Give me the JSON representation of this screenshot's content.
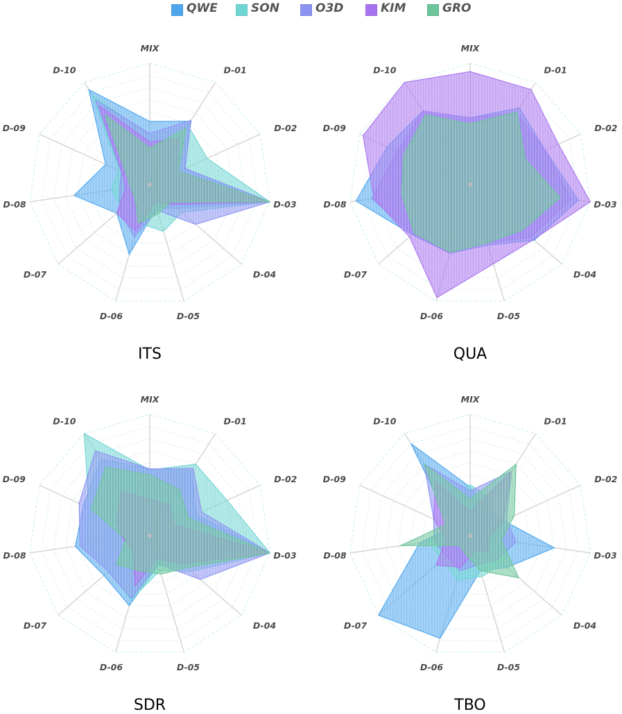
{
  "colors": {
    "QWE": "#4ea6ee",
    "SON": "#6fd5d2",
    "O3D": "#8b93f1",
    "KIM": "#a873ee",
    "GRO": "#6cc49a"
  },
  "legend": [
    "QWE",
    "SON",
    "O3D",
    "KIM",
    "GRO"
  ],
  "chart_data": [
    {
      "type": "radar",
      "title": "ITS",
      "axes": [
        "MIX",
        "D-01",
        "D-02",
        "D-03",
        "D-04",
        "D-05",
        "D-06",
        "D-07",
        "D-08",
        "D-09",
        "D-10"
      ],
      "range": [
        0,
        10
      ],
      "grid": true,
      "series": [
        {
          "name": "QWE",
          "values": [
            5.2,
            6.2,
            3.2,
            10,
            3.0,
            2.0,
            6.0,
            3.6,
            6.3,
            4.0,
            9.3
          ]
        },
        {
          "name": "SON",
          "values": [
            4.0,
            5.8,
            5.2,
            10,
            3.5,
            4.0,
            3.3,
            3.0,
            3.2,
            2.8,
            8.8
          ]
        },
        {
          "name": "O3D",
          "values": [
            4.2,
            6.3,
            3.2,
            10,
            5.0,
            2.2,
            4.5,
            3.3,
            2.5,
            2.6,
            8.3
          ]
        },
        {
          "name": "KIM",
          "values": [
            3.5,
            4.5,
            2.5,
            10,
            2.5,
            1.5,
            4.0,
            3.6,
            2.0,
            2.5,
            7.7
          ]
        },
        {
          "name": "GRO",
          "values": [
            3.0,
            5.5,
            2.6,
            10,
            2.2,
            2.5,
            3.3,
            1.6,
            1.6,
            2.1,
            6.8
          ]
        }
      ]
    },
    {
      "type": "radar",
      "title": "QUA",
      "axes": [
        "MIX",
        "D-01",
        "D-02",
        "D-03",
        "D-04",
        "D-05",
        "D-06",
        "D-07",
        "D-08",
        "D-09",
        "D-10"
      ],
      "range": [
        0,
        10
      ],
      "grid": true,
      "series": [
        {
          "name": "QWE",
          "values": [
            5.5,
            7.5,
            6.8,
            9.0,
            7.0,
            5.2,
            5.9,
            6.3,
            9.5,
            7.5,
            7.2
          ]
        },
        {
          "name": "SON",
          "values": [
            5.0,
            7.0,
            6.2,
            8.4,
            5.8,
            5.0,
            5.8,
            6.0,
            6.6,
            6.4,
            6.8
          ]
        },
        {
          "name": "O3D",
          "values": [
            5.5,
            7.0,
            6.8,
            8.4,
            6.6,
            5.0,
            5.9,
            6.2,
            8.2,
            6.6,
            7.2
          ]
        },
        {
          "name": "KIM",
          "values": [
            9.3,
            9.3,
            8.0,
            10,
            6.9,
            6.8,
            9.7,
            6.6,
            8.0,
            9.7,
            10
          ]
        },
        {
          "name": "GRO",
          "values": [
            5.0,
            7.1,
            5.0,
            7.5,
            5.7,
            5.0,
            5.8,
            6.1,
            5.7,
            6.0,
            6.8
          ]
        }
      ]
    },
    {
      "type": "radar",
      "title": "SDR",
      "axes": [
        "MIX",
        "D-01",
        "D-02",
        "D-03",
        "D-04",
        "D-05",
        "D-06",
        "D-07",
        "D-08",
        "D-09",
        "D-10"
      ],
      "range": [
        0,
        10
      ],
      "grid": true,
      "series": [
        {
          "name": "QWE",
          "values": [
            5.5,
            6.4,
            4.2,
            10,
            4.0,
            2.5,
            6.0,
            5.0,
            6.2,
            6.0,
            7.5
          ]
        },
        {
          "name": "SON",
          "values": [
            5.4,
            7.0,
            7.0,
            10,
            4.5,
            3.0,
            5.5,
            4.4,
            5.3,
            5.5,
            10
          ]
        },
        {
          "name": "O3D",
          "values": [
            5.5,
            6.6,
            4.7,
            10,
            5.5,
            2.4,
            5.4,
            4.5,
            5.8,
            6.4,
            8.3
          ]
        },
        {
          "name": "KIM",
          "values": [
            3.0,
            3.0,
            2.2,
            10,
            3.5,
            2.0,
            4.3,
            1.8,
            2.2,
            3.0,
            4.3
          ]
        },
        {
          "name": "GRO",
          "values": [
            5.0,
            4.5,
            3.5,
            10,
            4.0,
            3.3,
            3.0,
            3.6,
            2.0,
            5.3,
            6.7
          ]
        }
      ]
    },
    {
      "type": "radar",
      "title": "TBO",
      "axes": [
        "MIX",
        "D-01",
        "D-02",
        "D-03",
        "D-04",
        "D-05",
        "D-06",
        "D-07",
        "D-08",
        "D-09",
        "D-10"
      ],
      "range": [
        0,
        10
      ],
      "grid": true,
      "series": [
        {
          "name": "QWE",
          "values": [
            4.0,
            2.4,
            3.0,
            7.0,
            4.0,
            3.0,
            8.8,
            10,
            4.2,
            1.7,
            9.0
          ]
        },
        {
          "name": "SON",
          "values": [
            4.2,
            3.5,
            2.0,
            3.5,
            3.5,
            3.5,
            3.8,
            3.0,
            3.5,
            2.0,
            3.5
          ]
        },
        {
          "name": "O3D",
          "values": [
            3.7,
            6.3,
            3.3,
            3.8,
            3.0,
            2.5,
            3.0,
            2.6,
            3.0,
            3.3,
            7.0
          ]
        },
        {
          "name": "KIM",
          "values": [
            2.0,
            6.3,
            3.0,
            1.5,
            2.0,
            1.3,
            2.7,
            3.7,
            2.0,
            3.3,
            5.3
          ]
        },
        {
          "name": "GRO",
          "values": [
            3.0,
            7.0,
            4.0,
            2.6,
            5.3,
            3.0,
            1.5,
            1.2,
            5.8,
            2.2,
            7.0
          ]
        }
      ]
    }
  ]
}
